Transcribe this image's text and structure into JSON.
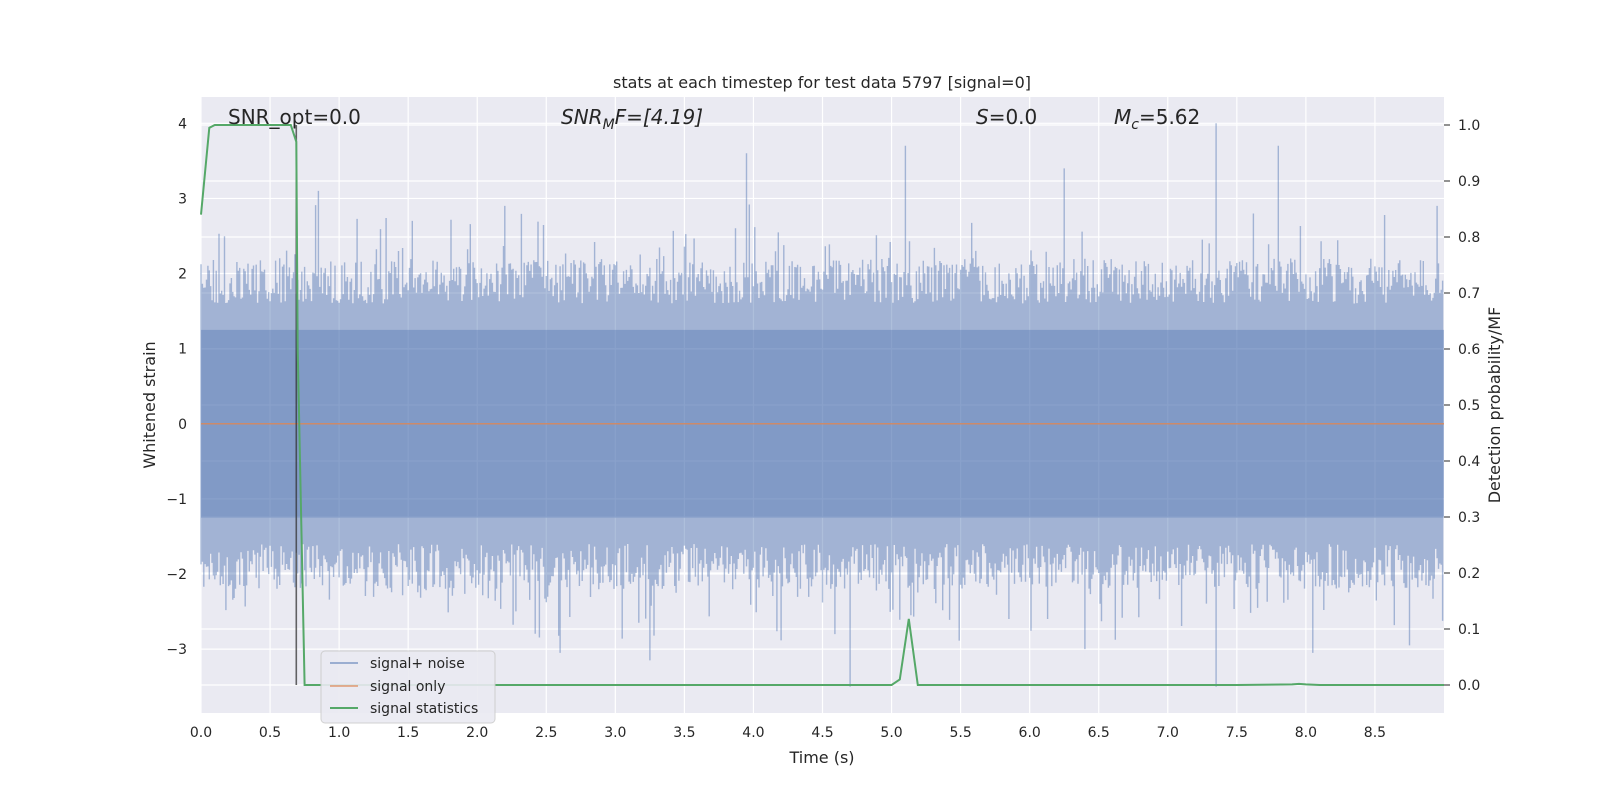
{
  "chart_data": {
    "type": "line",
    "title": "stats at each timestep for test data 5797 [signal=0]",
    "xlabel": "Time (s)",
    "ylabel": "Whitened strain",
    "ylabel_right": "Detection probability/MF",
    "xlim": [
      0.0,
      9.0
    ],
    "ylim": [
      -3.85,
      4.35
    ],
    "ylim_right": [
      -0.05,
      1.05
    ],
    "x_ticks": [
      "0.0",
      "0.5",
      "1.0",
      "1.5",
      "2.0",
      "2.5",
      "3.0",
      "3.5",
      "4.0",
      "4.5",
      "5.0",
      "5.5",
      "6.0",
      "6.5",
      "7.0",
      "7.5",
      "8.0",
      "8.5"
    ],
    "y_ticks": [
      "4",
      "3",
      "2",
      "1",
      "0",
      "−1",
      "−2",
      "−3"
    ],
    "y_ticks_right": [
      "1.0",
      "0.9",
      "0.8",
      "0.7",
      "0.6",
      "0.5",
      "0.4",
      "0.3",
      "0.2",
      "0.1",
      "0.0"
    ],
    "grid": true,
    "legend_position": "bottom-left",
    "annotations": {
      "snr_opt": "SNR_opt=0.0",
      "snr_mf_symbol": "SNR",
      "snr_mf_sub": "M",
      "snr_mf_rest": "F=[4.19]",
      "s_symbol": "S",
      "s_rest": "=0.0",
      "mc_symbol": "M",
      "mc_sub": "c",
      "mc_rest": "=5.62"
    },
    "marker_line_x": 0.69,
    "series": [
      {
        "name": "signal+ noise",
        "color": "#4c72b0",
        "note": "dense whitened noise, envelope sampled per 0.01 s",
        "peaks": [
          {
            "x": 0.85,
            "y": 3.1
          },
          {
            "x": 2.2,
            "y": 2.9
          },
          {
            "x": 3.95,
            "y": 3.6
          },
          {
            "x": 5.1,
            "y": 3.7
          },
          {
            "x": 6.25,
            "y": 3.4
          },
          {
            "x": 7.35,
            "y": 4.0
          },
          {
            "x": 7.8,
            "y": 3.7
          },
          {
            "x": 8.95,
            "y": 2.9
          }
        ],
        "troughs": [
          {
            "x": 2.6,
            "y": -3.05
          },
          {
            "x": 3.25,
            "y": -3.15
          },
          {
            "x": 4.7,
            "y": -3.5
          },
          {
            "x": 6.4,
            "y": -3.0
          },
          {
            "x": 7.35,
            "y": -3.5
          },
          {
            "x": 8.05,
            "y": -3.05
          },
          {
            "x": 8.75,
            "y": -2.95
          }
        ]
      },
      {
        "name": "signal only",
        "color": "#dd8452",
        "x": [
          0.0,
          9.0
        ],
        "y": [
          0.0,
          0.0
        ]
      },
      {
        "name": "signal statistics",
        "color": "#55a868",
        "axis": "right",
        "x": [
          0.0,
          0.06,
          0.1,
          0.2,
          0.3,
          0.4,
          0.5,
          0.6,
          0.65,
          0.69,
          0.7,
          0.75,
          0.8,
          1.0,
          2.0,
          3.0,
          4.0,
          4.5,
          5.0,
          5.06,
          5.125,
          5.19,
          5.3,
          6.0,
          7.0,
          7.5,
          7.9,
          7.95,
          8.0,
          8.1,
          8.5,
          9.0
        ],
        "y": [
          0.84,
          0.995,
          1.0,
          1.0,
          1.0,
          1.0,
          1.0,
          1.0,
          1.0,
          0.97,
          0.6,
          0.0,
          0.0,
          0.0,
          0.0,
          0.0,
          0.0,
          0.0,
          0.0,
          0.01,
          0.118,
          0.0,
          0.0,
          0.0,
          0.0,
          0.0,
          0.001,
          0.002,
          0.001,
          0.0,
          0.0,
          0.0
        ]
      }
    ]
  }
}
